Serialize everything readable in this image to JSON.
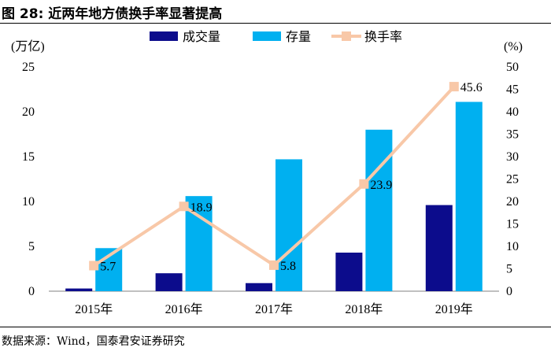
{
  "title": "图 28:  近两年地方债换手率显著提高",
  "source": "数据来源：Wind，国泰君安证券研究",
  "left_unit": "(万亿)",
  "right_unit": "(%)",
  "colors": {
    "volume": "#0c0c8c",
    "stock": "#00b0f0",
    "turnover": "#f8c8a8"
  },
  "chart_data": {
    "type": "bar",
    "categories": [
      "2015年",
      "2016年",
      "2017年",
      "2018年",
      "2019年"
    ],
    "series": [
      {
        "name": "成交量",
        "axis": "left",
        "kind": "bar",
        "values": [
          0.3,
          2.0,
          0.9,
          4.3,
          9.6
        ]
      },
      {
        "name": "存量",
        "axis": "left",
        "kind": "bar",
        "values": [
          4.8,
          10.6,
          14.7,
          18.0,
          21.1
        ]
      },
      {
        "name": "换手率",
        "axis": "right",
        "kind": "line",
        "values": [
          5.7,
          18.9,
          5.8,
          23.9,
          45.6
        ]
      }
    ],
    "data_labels": [
      "5.7",
      "18.9",
      "5.8",
      "23.9",
      "45.6"
    ],
    "ylim_left": [
      0,
      25
    ],
    "yticks_left": [
      "0",
      "5",
      "10",
      "15",
      "20",
      "25"
    ],
    "ylim_right": [
      0,
      50
    ],
    "yticks_right": [
      "0",
      "5",
      "10",
      "15",
      "20",
      "25",
      "30",
      "35",
      "40",
      "45",
      "50"
    ],
    "legend": [
      "成交量",
      "存量",
      "换手率"
    ],
    "legend_position": "top-center",
    "grid": false
  }
}
